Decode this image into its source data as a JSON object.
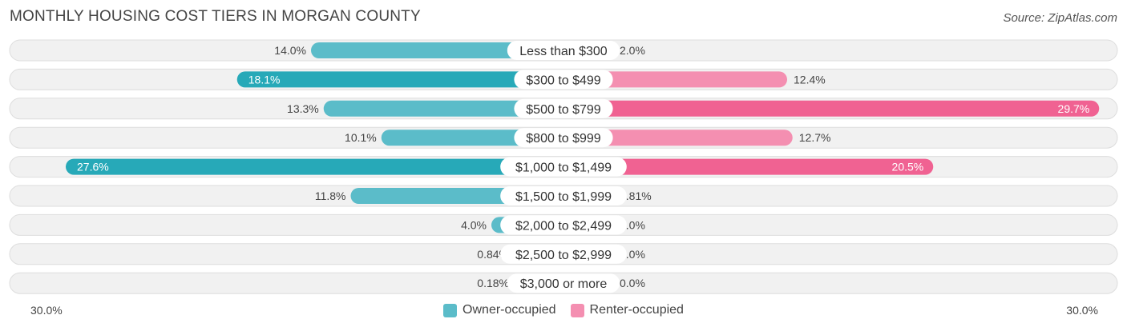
{
  "header": {
    "title": "MONTHLY HOUSING COST TIERS IN MORGAN COUNTY",
    "source": "Source: ZipAtlas.com"
  },
  "colors": {
    "owner": "#5bbcc9",
    "owner_strong": "#27a9b8",
    "renter": "#f48fb1",
    "renter_strong": "#f06292"
  },
  "chart_data": {
    "type": "bar",
    "orientation": "horizontal-diverging",
    "categories": [
      "Less than $300",
      "$300 to $499",
      "$500 to $799",
      "$800 to $999",
      "$1,000 to $1,499",
      "$1,500 to $1,999",
      "$2,000 to $2,499",
      "$2,500 to $2,999",
      "$3,000 or more"
    ],
    "series": [
      {
        "name": "Owner-occupied",
        "values": [
          14.0,
          18.1,
          13.3,
          10.1,
          27.6,
          11.8,
          4.0,
          0.84,
          0.18
        ],
        "labels": [
          "14.0%",
          "18.1%",
          "13.3%",
          "10.1%",
          "27.6%",
          "11.8%",
          "4.0%",
          "0.84%",
          "0.18%"
        ]
      },
      {
        "name": "Renter-occupied",
        "values": [
          2.0,
          12.4,
          29.7,
          12.7,
          20.5,
          0.81,
          0.0,
          0.0,
          0.0
        ],
        "labels": [
          "2.0%",
          "12.4%",
          "29.7%",
          "12.7%",
          "20.5%",
          "0.81%",
          "0.0%",
          "0.0%",
          "0.0%"
        ]
      }
    ],
    "xlim": [
      -30,
      30
    ],
    "axis_left_label": "30.0%",
    "axis_right_label": "30.0%",
    "legend": [
      "Owner-occupied",
      "Renter-occupied"
    ],
    "legend_position": "bottom-center"
  }
}
